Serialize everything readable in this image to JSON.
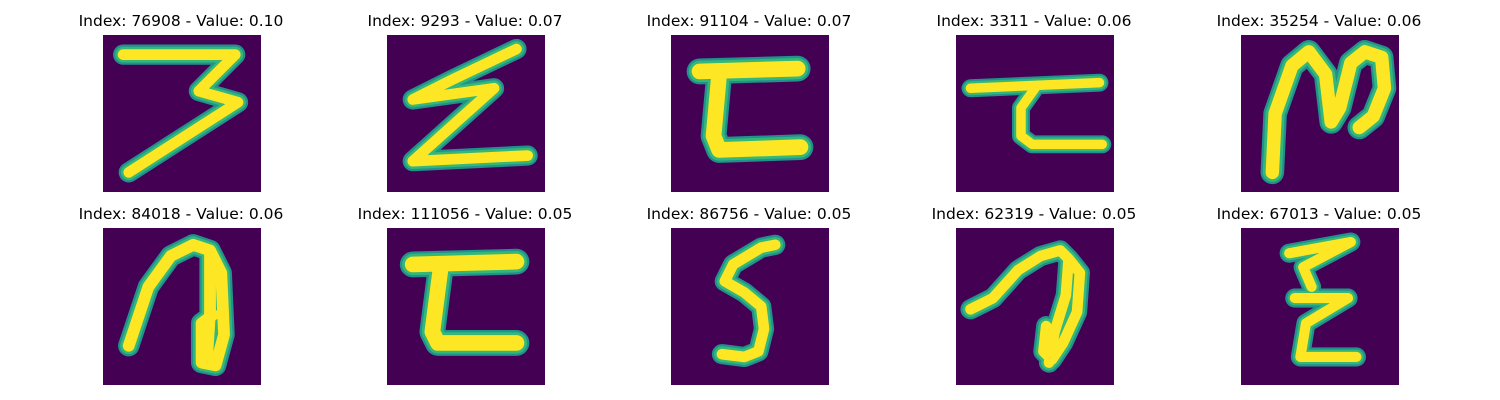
{
  "panels": [
    {
      "title": "Index: 76908 - Value: 0.10",
      "glyph": "digit-3-glyph"
    },
    {
      "title": "Index: 9293 - Value: 0.07",
      "glyph": "zigzag-z-glyph"
    },
    {
      "title": "Index: 91104 - Value: 0.07",
      "glyph": "bracket-c-glyph"
    },
    {
      "title": "Index: 3311 - Value: 0.06",
      "glyph": "bar-c-glyph"
    },
    {
      "title": "Index: 35254 - Value: 0.06",
      "glyph": "loop-n-glyph"
    },
    {
      "title": "Index: 84018 - Value: 0.06",
      "glyph": "hook-a-glyph"
    },
    {
      "title": "Index: 111056 - Value: 0.05",
      "glyph": "bracket-c-glyph-2"
    },
    {
      "title": "Index: 86756 - Value: 0.05",
      "glyph": "digit-5-glyph"
    },
    {
      "title": "Index: 62319 - Value: 0.05",
      "glyph": "hook-a-glyph-2"
    },
    {
      "title": "Index: 67013 - Value: 0.05",
      "glyph": "stacked-z-glyph"
    }
  ],
  "colors": {
    "background": "#440154",
    "stroke_core": "#fde725",
    "stroke_edge": "#35b779",
    "stroke_halo": "#21918c"
  }
}
